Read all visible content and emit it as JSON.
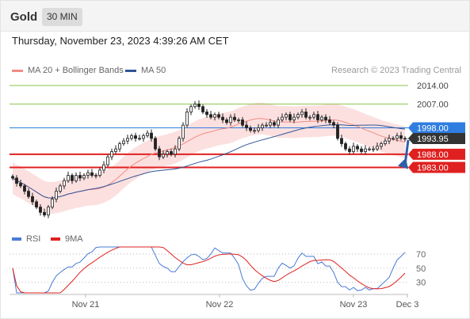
{
  "header": {
    "title": "Gold",
    "interval_tab": "30 MIN"
  },
  "timestamp": "Thursday, November 23, 2023 4:39:26 AM CET",
  "credit": "Research © 2023 Trading Central",
  "colors": {
    "ma20": "#f28b82",
    "ma50": "#2f5597",
    "band_fill": "#fbd5d5",
    "resistance": "#8bc34a",
    "pivot": "#2f7de1",
    "support": "#e02020",
    "rsi": "#4a7bd6",
    "rsi_ma": "#e02020",
    "arrow": "#2f5fa8"
  },
  "chart_data": [
    {
      "type": "candlestick",
      "legend": [
        {
          "name": "MA 20 + Bollinger Bands",
          "color": "#f28b82"
        },
        {
          "name": "MA 50",
          "color": "#2f5597"
        }
      ],
      "ylim": [
        1962.5,
        2017
      ],
      "levels": [
        {
          "value": 2014.0,
          "label": "2014.00",
          "kind": "resistance"
        },
        {
          "value": 2007.0,
          "label": "2007.00",
          "kind": "resistance"
        },
        {
          "value": 1998.0,
          "label": "1998.00",
          "kind": "pivot"
        },
        {
          "value": 1993.95,
          "label": "1993.95",
          "kind": "last"
        },
        {
          "value": 1988.0,
          "label": "1988.00",
          "kind": "support"
        },
        {
          "value": 1983.0,
          "label": "1983.00",
          "kind": "support"
        }
      ],
      "x_ticks": [
        "Nov 21",
        "Nov 22",
        "Nov 23",
        "Dec 3"
      ],
      "closes": [
        1979,
        1977,
        1976,
        1974,
        1972,
        1970,
        1968,
        1966,
        1965,
        1968,
        1971,
        1974,
        1976,
        1978,
        1980,
        1978,
        1980,
        1979,
        1980,
        1981,
        1980,
        1980,
        1982,
        1984,
        1987,
        1989,
        1990,
        1992,
        1993,
        1994,
        1995,
        1994,
        1994,
        1995,
        1996,
        1994,
        1990,
        1987,
        1988,
        1989,
        1988,
        1990,
        1994,
        1999,
        2004,
        2006,
        2007,
        2006,
        2004,
        2003,
        2002,
        2003,
        2002,
        2001,
        2000,
        2002,
        2001,
        2001,
        1999,
        1998,
        1997,
        1997,
        1998,
        1999,
        1999,
        2000,
        1999,
        2001,
        2002,
        2003,
        2001,
        2002,
        2003,
        2004,
        2002,
        2002,
        2003,
        2001,
        2002,
        2001,
        2000,
        1999,
        1994,
        1992,
        1990,
        1989,
        1991,
        1990,
        1989,
        1990,
        1990,
        1990,
        1991,
        1992,
        1993,
        1994,
        1994,
        1995,
        1994,
        1993.95
      ],
      "ma20_band_width": 6
    },
    {
      "type": "line",
      "title": "RSI",
      "legend": [
        {
          "name": "RSI",
          "color": "#4a7bd6"
        },
        {
          "name": "9MA",
          "color": "#e02020"
        }
      ],
      "levels": [
        70,
        50,
        30
      ],
      "ylim": [
        15,
        80
      ]
    }
  ]
}
